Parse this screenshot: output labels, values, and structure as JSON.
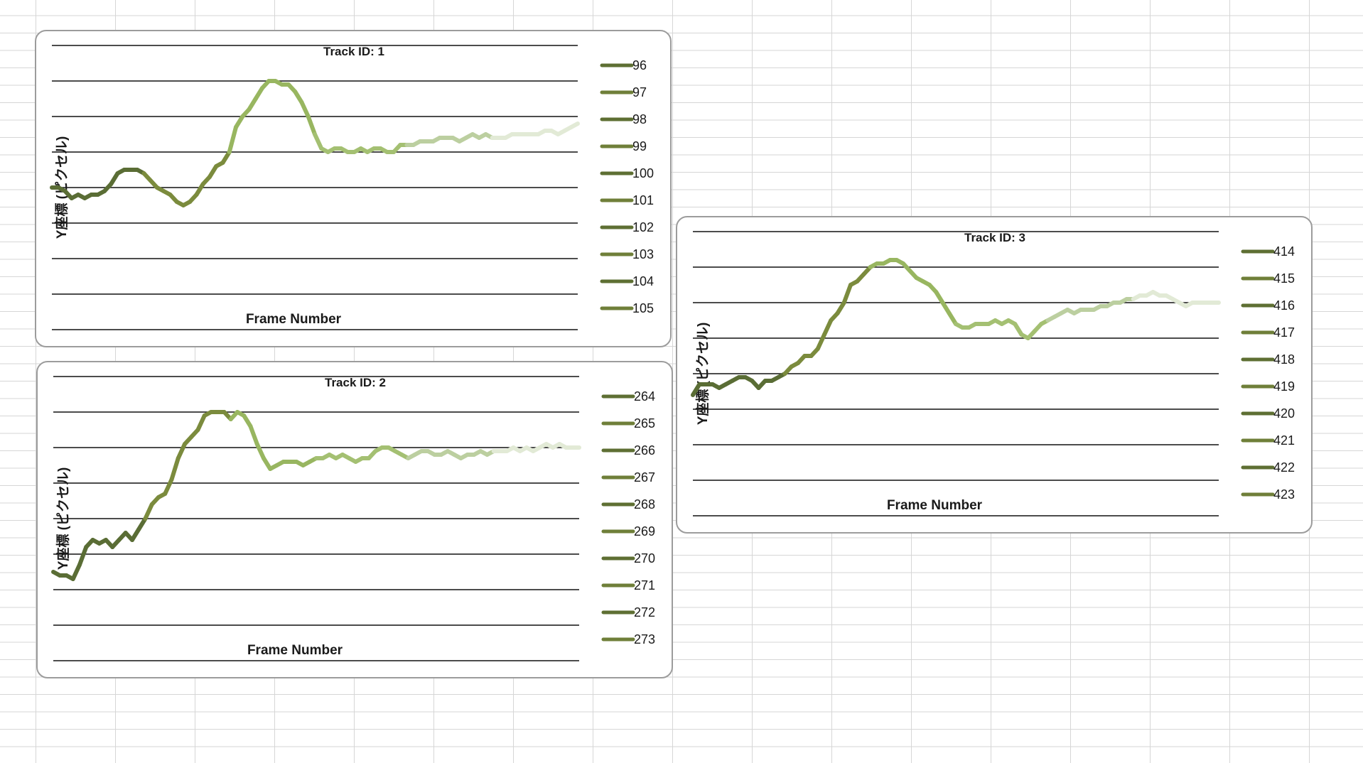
{
  "chart_data": [
    {
      "type": "line",
      "title": "Track ID: 1",
      "xlabel": "Frame Number",
      "ylabel": "Y座標 (ピクセル)",
      "legend_placement": "right",
      "grid": "horizontal",
      "y_direction": "inverted",
      "ylim": [
        0,
        8
      ],
      "legend": [
        "96",
        "97",
        "98",
        "99",
        "100",
        "101",
        "102",
        "103",
        "104",
        "105"
      ],
      "x": [
        0,
        1,
        2,
        3,
        4,
        5,
        6,
        7,
        8,
        9,
        10,
        11,
        12,
        13,
        14,
        15,
        16,
        17,
        18,
        19,
        20,
        21,
        22,
        23,
        24,
        25,
        26,
        27,
        28,
        29,
        30,
        31,
        32,
        33,
        34,
        35,
        36,
        37,
        38,
        39,
        40,
        41,
        42,
        43,
        44,
        45,
        46,
        47,
        48,
        49,
        50,
        51,
        52,
        53,
        54,
        55,
        56,
        57,
        58,
        59,
        60,
        61,
        62,
        63,
        64,
        65,
        66,
        67,
        68,
        69,
        70,
        71,
        72,
        73,
        74,
        75,
        76,
        77,
        78,
        79,
        80
      ],
      "y": [
        4.0,
        4.0,
        4.1,
        4.3,
        4.2,
        4.3,
        4.2,
        4.2,
        4.1,
        3.9,
        3.6,
        3.5,
        3.5,
        3.5,
        3.6,
        3.8,
        4.0,
        4.1,
        4.2,
        4.4,
        4.5,
        4.4,
        4.2,
        3.9,
        3.7,
        3.4,
        3.3,
        3.0,
        2.3,
        2.0,
        1.8,
        1.5,
        1.2,
        1.0,
        1.0,
        1.1,
        1.1,
        1.3,
        1.6,
        2.0,
        2.5,
        2.9,
        3.0,
        2.9,
        2.9,
        3.0,
        3.0,
        2.9,
        3.0,
        2.9,
        2.9,
        3.0,
        3.0,
        2.8,
        2.8,
        2.8,
        2.7,
        2.7,
        2.7,
        2.6,
        2.6,
        2.6,
        2.7,
        2.6,
        2.5,
        2.6,
        2.5,
        2.6,
        2.6,
        2.6,
        2.5,
        2.5,
        2.5,
        2.5,
        2.5,
        2.4,
        2.4,
        2.5,
        2.4,
        2.3,
        2.2
      ],
      "colors": [
        "#5a6d35",
        "#7b8b3d",
        "#98b660",
        "#a4c072",
        "#bccfa0",
        "#e2ead6"
      ]
    },
    {
      "type": "line",
      "title": "Track ID: 2",
      "xlabel": "Frame Number",
      "ylabel": "Y座標 (ピクセル)",
      "legend_placement": "right",
      "grid": "horizontal",
      "y_direction": "inverted",
      "ylim": [
        0,
        8
      ],
      "legend": [
        "264",
        "265",
        "266",
        "267",
        "268",
        "269",
        "270",
        "271",
        "272",
        "273"
      ],
      "x": [
        0,
        1,
        2,
        3,
        4,
        5,
        6,
        7,
        8,
        9,
        10,
        11,
        12,
        13,
        14,
        15,
        16,
        17,
        18,
        19,
        20,
        21,
        22,
        23,
        24,
        25,
        26,
        27,
        28,
        29,
        30,
        31,
        32,
        33,
        34,
        35,
        36,
        37,
        38,
        39,
        40,
        41,
        42,
        43,
        44,
        45,
        46,
        47,
        48,
        49,
        50,
        51,
        52,
        53,
        54,
        55,
        56,
        57,
        58,
        59,
        60,
        61,
        62,
        63,
        64,
        65,
        66,
        67,
        68,
        69,
        70,
        71,
        72,
        73,
        74,
        75,
        76,
        77,
        78,
        79,
        80
      ],
      "y": [
        5.5,
        5.6,
        5.6,
        5.7,
        5.3,
        4.8,
        4.6,
        4.7,
        4.6,
        4.8,
        4.6,
        4.4,
        4.6,
        4.3,
        4.0,
        3.6,
        3.4,
        3.3,
        2.9,
        2.3,
        1.9,
        1.7,
        1.5,
        1.1,
        1.0,
        1.0,
        1.0,
        1.2,
        1.0,
        1.1,
        1.4,
        1.9,
        2.3,
        2.6,
        2.5,
        2.4,
        2.4,
        2.4,
        2.5,
        2.4,
        2.3,
        2.3,
        2.2,
        2.3,
        2.2,
        2.3,
        2.4,
        2.3,
        2.3,
        2.1,
        2.0,
        2.0,
        2.1,
        2.2,
        2.3,
        2.2,
        2.1,
        2.1,
        2.2,
        2.2,
        2.1,
        2.2,
        2.3,
        2.2,
        2.2,
        2.1,
        2.2,
        2.1,
        2.1,
        2.1,
        2.0,
        2.1,
        2.0,
        2.1,
        2.0,
        1.9,
        2.0,
        1.9,
        2.0,
        2.0,
        2.0
      ],
      "colors": [
        "#5a6d35",
        "#7b8b3d",
        "#98b660",
        "#a4c072",
        "#bccfa0",
        "#e2ead6"
      ]
    },
    {
      "type": "line",
      "title": "Track ID: 3",
      "xlabel": "Frame Number",
      "ylabel": "Y座標 (ピクセル)",
      "legend_placement": "right",
      "grid": "horizontal",
      "y_direction": "inverted",
      "ylim": [
        0,
        8
      ],
      "legend": [
        "414",
        "415",
        "416",
        "417",
        "418",
        "419",
        "420",
        "421",
        "422",
        "423"
      ],
      "x": [
        0,
        1,
        2,
        3,
        4,
        5,
        6,
        7,
        8,
        9,
        10,
        11,
        12,
        13,
        14,
        15,
        16,
        17,
        18,
        19,
        20,
        21,
        22,
        23,
        24,
        25,
        26,
        27,
        28,
        29,
        30,
        31,
        32,
        33,
        34,
        35,
        36,
        37,
        38,
        39,
        40,
        41,
        42,
        43,
        44,
        45,
        46,
        47,
        48,
        49,
        50,
        51,
        52,
        53,
        54,
        55,
        56,
        57,
        58,
        59,
        60,
        61,
        62,
        63,
        64,
        65,
        66,
        67,
        68,
        69,
        70,
        71,
        72,
        73,
        74,
        75,
        76,
        77,
        78,
        79,
        80
      ],
      "y": [
        4.6,
        4.3,
        4.3,
        4.3,
        4.4,
        4.3,
        4.2,
        4.1,
        4.1,
        4.2,
        4.4,
        4.2,
        4.2,
        4.1,
        4.0,
        3.8,
        3.7,
        3.5,
        3.5,
        3.3,
        2.9,
        2.5,
        2.3,
        2.0,
        1.5,
        1.4,
        1.2,
        1.0,
        0.9,
        0.9,
        0.8,
        0.8,
        0.9,
        1.1,
        1.3,
        1.4,
        1.5,
        1.7,
        2.0,
        2.3,
        2.6,
        2.7,
        2.7,
        2.6,
        2.6,
        2.6,
        2.5,
        2.6,
        2.5,
        2.6,
        2.9,
        3.0,
        2.8,
        2.6,
        2.5,
        2.4,
        2.3,
        2.2,
        2.3,
        2.2,
        2.2,
        2.2,
        2.1,
        2.1,
        2.0,
        2.0,
        1.9,
        1.9,
        1.8,
        1.8,
        1.7,
        1.8,
        1.8,
        1.9,
        2.0,
        2.1,
        2.0,
        2.0,
        2.0,
        2.0,
        2.0
      ],
      "colors": [
        "#5a6d35",
        "#7b8b3d",
        "#98b660",
        "#a4c072",
        "#bccfa0",
        "#e2ead6"
      ]
    }
  ]
}
